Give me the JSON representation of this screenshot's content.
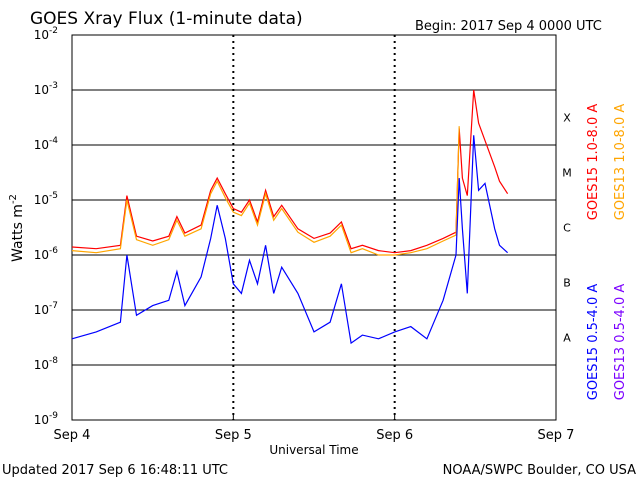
{
  "chart_data": {
    "type": "line",
    "title": "GOES Xray Flux (1-minute data)",
    "begin_text": "Begin:  2017 Sep 4 0000 UTC",
    "xlabel": "Universal Time",
    "ylabel_main": "Watts m",
    "ylabel_exp": "-2",
    "x_ticks": [
      "Sep 4",
      "Sep 5",
      "Sep 6",
      "Sep 7"
    ],
    "y_scale": "log",
    "ylim": [
      1e-09,
      0.01
    ],
    "y_ticks": [
      {
        "base": "10",
        "exp": "-9"
      },
      {
        "base": "10",
        "exp": "-8"
      },
      {
        "base": "10",
        "exp": "-7"
      },
      {
        "base": "10",
        "exp": "-6"
      },
      {
        "base": "10",
        "exp": "-5"
      },
      {
        "base": "10",
        "exp": "-4"
      },
      {
        "base": "10",
        "exp": "-3"
      },
      {
        "base": "10",
        "exp": "-2"
      }
    ],
    "flare_classes": [
      "A",
      "B",
      "C",
      "M",
      "X"
    ],
    "x_unit": "days since Sep 4 0000 UTC",
    "series": [
      {
        "name": "GOES15 1.0-8.0 A",
        "color": "#ff0000",
        "points": [
          [
            0.0,
            1.4e-06
          ],
          [
            0.15,
            1.3e-06
          ],
          [
            0.3,
            1.5e-06
          ],
          [
            0.34,
            1.2e-05
          ],
          [
            0.4,
            2.2e-06
          ],
          [
            0.5,
            1.8e-06
          ],
          [
            0.6,
            2.2e-06
          ],
          [
            0.65,
            5e-06
          ],
          [
            0.7,
            2.5e-06
          ],
          [
            0.8,
            3.5e-06
          ],
          [
            0.86,
            1.5e-05
          ],
          [
            0.9,
            2.5e-05
          ],
          [
            0.95,
            1.3e-05
          ],
          [
            1.0,
            7e-06
          ],
          [
            1.05,
            6e-06
          ],
          [
            1.1,
            1e-05
          ],
          [
            1.15,
            4e-06
          ],
          [
            1.2,
            1.5e-05
          ],
          [
            1.25,
            5e-06
          ],
          [
            1.3,
            8e-06
          ],
          [
            1.4,
            3e-06
          ],
          [
            1.5,
            2e-06
          ],
          [
            1.6,
            2.5e-06
          ],
          [
            1.67,
            4e-06
          ],
          [
            1.73,
            1.3e-06
          ],
          [
            1.8,
            1.5e-06
          ],
          [
            1.9,
            1.2e-06
          ],
          [
            2.0,
            1.1e-06
          ],
          [
            2.1,
            1.2e-06
          ],
          [
            2.2,
            1.5e-06
          ],
          [
            2.3,
            2e-06
          ],
          [
            2.38,
            2.6e-06
          ],
          [
            2.4,
            0.0002
          ],
          [
            2.42,
            2.5e-05
          ],
          [
            2.45,
            1.2e-05
          ],
          [
            2.49,
            0.001
          ],
          [
            2.52,
            0.00025
          ],
          [
            2.56,
            0.00012
          ],
          [
            2.62,
            4e-05
          ],
          [
            2.65,
            2.2e-05
          ],
          [
            2.7,
            1.3e-05
          ]
        ]
      },
      {
        "name": "GOES13 1.0-8.0 A",
        "color": "#ffa500",
        "points": [
          [
            0.0,
            1.2e-06
          ],
          [
            0.15,
            1.1e-06
          ],
          [
            0.3,
            1.3e-06
          ],
          [
            0.34,
            1e-05
          ],
          [
            0.4,
            1.9e-06
          ],
          [
            0.5,
            1.5e-06
          ],
          [
            0.6,
            1.9e-06
          ],
          [
            0.65,
            4.3e-06
          ],
          [
            0.7,
            2.2e-06
          ],
          [
            0.8,
            3e-06
          ],
          [
            0.86,
            1.3e-05
          ],
          [
            0.9,
            2.2e-05
          ],
          [
            0.95,
            1.1e-05
          ],
          [
            1.0,
            6e-06
          ],
          [
            1.05,
            5.2e-06
          ],
          [
            1.1,
            8.8e-06
          ],
          [
            1.15,
            3.5e-06
          ],
          [
            1.2,
            1.3e-05
          ],
          [
            1.25,
            4.3e-06
          ],
          [
            1.3,
            7e-06
          ],
          [
            1.4,
            2.6e-06
          ],
          [
            1.5,
            1.7e-06
          ],
          [
            1.6,
            2.2e-06
          ],
          [
            1.67,
            3.5e-06
          ],
          [
            1.73,
            1.1e-06
          ],
          [
            1.8,
            1.3e-06
          ],
          [
            1.9,
            1e-06
          ],
          [
            2.0,
            1e-06
          ],
          [
            2.1,
            1.1e-06
          ],
          [
            2.2,
            1.3e-06
          ],
          [
            2.3,
            1.8e-06
          ],
          [
            2.38,
            2.3e-06
          ],
          [
            2.4,
            0.00022
          ]
        ]
      },
      {
        "name": "GOES15 0.5-4.0 A",
        "color": "#0000ff",
        "points": [
          [
            0.0,
            3e-08
          ],
          [
            0.15,
            4e-08
          ],
          [
            0.3,
            6e-08
          ],
          [
            0.34,
            1e-06
          ],
          [
            0.4,
            8e-08
          ],
          [
            0.5,
            1.2e-07
          ],
          [
            0.6,
            1.5e-07
          ],
          [
            0.65,
            5e-07
          ],
          [
            0.7,
            1.2e-07
          ],
          [
            0.8,
            4e-07
          ],
          [
            0.86,
            2e-06
          ],
          [
            0.9,
            8e-06
          ],
          [
            0.95,
            2e-06
          ],
          [
            1.0,
            3e-07
          ],
          [
            1.05,
            2e-07
          ],
          [
            1.1,
            8e-07
          ],
          [
            1.15,
            3e-07
          ],
          [
            1.2,
            1.5e-06
          ],
          [
            1.25,
            2e-07
          ],
          [
            1.3,
            6e-07
          ],
          [
            1.4,
            2e-07
          ],
          [
            1.5,
            4e-08
          ],
          [
            1.6,
            6e-08
          ],
          [
            1.67,
            3e-07
          ],
          [
            1.73,
            2.5e-08
          ],
          [
            1.8,
            3.5e-08
          ],
          [
            1.9,
            3e-08
          ],
          [
            2.0,
            4e-08
          ],
          [
            2.1,
            5e-08
          ],
          [
            2.2,
            3e-08
          ],
          [
            2.3,
            1.5e-07
          ],
          [
            2.38,
            1e-06
          ],
          [
            2.4,
            2.5e-05
          ],
          [
            2.42,
            3e-06
          ],
          [
            2.45,
            2e-07
          ],
          [
            2.49,
            0.00015
          ],
          [
            2.52,
            1.5e-05
          ],
          [
            2.56,
            2e-05
          ],
          [
            2.62,
            3e-06
          ],
          [
            2.65,
            1.5e-06
          ],
          [
            2.7,
            1.1e-06
          ]
        ]
      },
      {
        "name": "GOES13 0.5-4.0 A",
        "color": "#7b00ff",
        "points": []
      }
    ]
  },
  "footer": {
    "updated": "Updated 2017 Sep  6 16:48:11 UTC",
    "credit": "NOAA/SWPC Boulder, CO USA"
  }
}
